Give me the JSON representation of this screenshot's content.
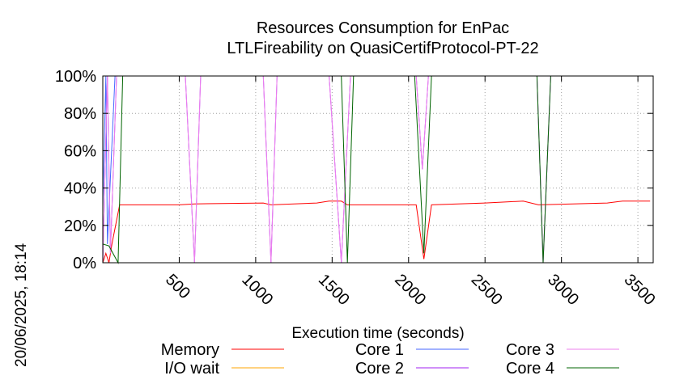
{
  "chart_data": {
    "type": "line",
    "title_lines": [
      "Resources Consumption for EnPac",
      "LTLFireability on QuasiCertifProtocol-PT-22"
    ],
    "xlabel": "Execution time (seconds)",
    "ylabel": "",
    "side_label": "20/06/2025, 18:14",
    "xlim": [
      0,
      3600
    ],
    "ylim": [
      0,
      100
    ],
    "xticks": [
      500,
      1000,
      1500,
      2000,
      2500,
      3000,
      3500
    ],
    "yticks": [
      {
        "value": 0,
        "label": "0%"
      },
      {
        "value": 20,
        "label": "20%"
      },
      {
        "value": 40,
        "label": "40%"
      },
      {
        "value": 60,
        "label": "60%"
      },
      {
        "value": 80,
        "label": "80%"
      },
      {
        "value": 100,
        "label": "100%"
      }
    ],
    "grid": true,
    "legend_position": "bottom",
    "series": [
      {
        "name": "Memory",
        "color": "#ff0000",
        "points": [
          [
            0,
            0
          ],
          [
            20,
            5
          ],
          [
            40,
            0
          ],
          [
            60,
            10
          ],
          [
            110,
            31
          ],
          [
            500,
            31
          ],
          [
            600,
            31.5
          ],
          [
            1050,
            32
          ],
          [
            1100,
            31
          ],
          [
            1400,
            32
          ],
          [
            1480,
            33
          ],
          [
            1560,
            33
          ],
          [
            1600,
            31
          ],
          [
            2050,
            31
          ],
          [
            2100,
            2
          ],
          [
            2150,
            31
          ],
          [
            2500,
            32
          ],
          [
            2750,
            33
          ],
          [
            2850,
            31
          ],
          [
            3300,
            32
          ],
          [
            3400,
            33
          ],
          [
            3580,
            33
          ]
        ]
      },
      {
        "name": "I/O wait",
        "color": "#ffa500",
        "points": [
          [
            0,
            0
          ],
          [
            3580,
            0
          ]
        ]
      },
      {
        "name": "Core 1",
        "color": "#4466ff",
        "points": [
          [
            0,
            30
          ],
          [
            20,
            100
          ],
          [
            30,
            10
          ],
          [
            80,
            100
          ],
          [
            3580,
            100
          ]
        ]
      },
      {
        "name": "Core 2",
        "color": "#a020f0",
        "points": [
          [
            0,
            0
          ],
          [
            30,
            100
          ],
          [
            50,
            5
          ],
          [
            90,
            100
          ],
          [
            540,
            100
          ],
          [
            600,
            0
          ],
          [
            640,
            100
          ],
          [
            1050,
            100
          ],
          [
            1100,
            0
          ],
          [
            1140,
            100
          ],
          [
            1480,
            100
          ],
          [
            1560,
            0
          ],
          [
            1620,
            100
          ],
          [
            2050,
            100
          ],
          [
            2090,
            50
          ],
          [
            2130,
            100
          ],
          [
            2840,
            100
          ],
          [
            2880,
            0
          ],
          [
            2930,
            100
          ],
          [
            3580,
            100
          ]
        ]
      },
      {
        "name": "Core 3",
        "color": "#ee82ee",
        "points": [
          [
            0,
            0
          ],
          [
            30,
            100
          ],
          [
            50,
            5
          ],
          [
            90,
            100
          ],
          [
            540,
            100
          ],
          [
            600,
            0
          ],
          [
            640,
            100
          ],
          [
            1050,
            100
          ],
          [
            1100,
            0
          ],
          [
            1140,
            100
          ],
          [
            1480,
            100
          ],
          [
            1560,
            0
          ],
          [
            1620,
            100
          ],
          [
            2050,
            100
          ],
          [
            2090,
            50
          ],
          [
            2130,
            100
          ],
          [
            2840,
            100
          ],
          [
            2880,
            0
          ],
          [
            2930,
            100
          ],
          [
            3580,
            100
          ]
        ]
      },
      {
        "name": "Core 4",
        "color": "#006400",
        "points": [
          [
            0,
            10
          ],
          [
            40,
            9
          ],
          [
            100,
            0
          ],
          [
            130,
            100
          ],
          [
            1560,
            100
          ],
          [
            1600,
            0
          ],
          [
            1640,
            100
          ],
          [
            2040,
            100
          ],
          [
            2100,
            5
          ],
          [
            2150,
            100
          ],
          [
            2840,
            100
          ],
          [
            2880,
            0
          ],
          [
            2930,
            100
          ],
          [
            3580,
            100
          ]
        ]
      }
    ]
  }
}
